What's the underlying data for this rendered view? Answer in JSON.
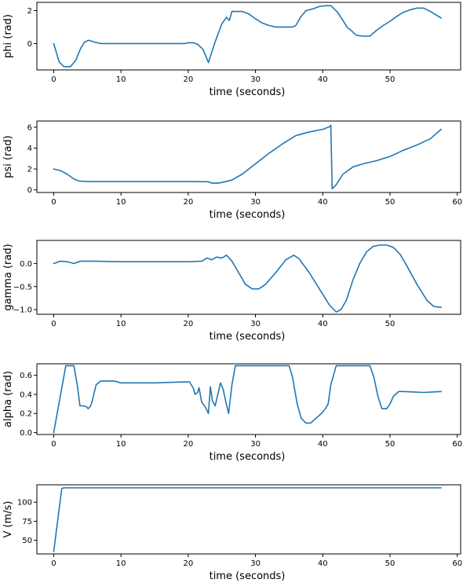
{
  "colors": {
    "series": "#1f77b4",
    "axes": "#000000",
    "background": "#ffffff"
  },
  "chart_data": [
    {
      "type": "line",
      "xlabel": "time (seconds)",
      "ylabel": "phi (rad)",
      "xlim": [
        -2.5,
        60.5
      ],
      "ylim": [
        -1.6,
        2.5
      ],
      "xticks": [
        0,
        10,
        20,
        30,
        40,
        50
      ],
      "xtick_labels": [
        "0",
        "10",
        "20",
        "30",
        "40",
        "50"
      ],
      "yticks": [
        -2,
        0,
        2
      ],
      "ytick_labels": [
        "",
        "0",
        "2"
      ],
      "grid": false,
      "series": [
        {
          "x": [
            0,
            0.8,
            1.5,
            2.5,
            3.3,
            4.0,
            4.6,
            5.2,
            6.0,
            7.0,
            10,
            15,
            19.5,
            20.0,
            20.8,
            21.4,
            22.2,
            23.0,
            24.0,
            25.0,
            25.7,
            26.1,
            26.5,
            27.2,
            28.0,
            29.0,
            30.0,
            31.0,
            32.0,
            33.0,
            34.5,
            35.5,
            36.0,
            36.7,
            37.5,
            38.5,
            39.5,
            40.5,
            41.2,
            42.2,
            43.0,
            43.6,
            44.2,
            45.0,
            46.0,
            47.0,
            48.0,
            49.0,
            50.0,
            51.0,
            52.0,
            53.0,
            54.0,
            55.0,
            56.0,
            57.0,
            57.6
          ],
          "y": [
            0.0,
            -1.1,
            -1.4,
            -1.4,
            -1.0,
            -0.3,
            0.1,
            0.2,
            0.1,
            0.0,
            0.0,
            0.0,
            0.0,
            0.05,
            0.05,
            -0.05,
            -0.35,
            -1.15,
            0.1,
            1.2,
            1.6,
            1.4,
            1.95,
            1.95,
            1.95,
            1.8,
            1.5,
            1.25,
            1.1,
            1.0,
            1.0,
            1.0,
            1.1,
            1.6,
            2.0,
            2.1,
            2.25,
            2.3,
            2.3,
            1.9,
            1.4,
            1.0,
            0.8,
            0.5,
            0.45,
            0.45,
            0.8,
            1.1,
            1.35,
            1.65,
            1.9,
            2.05,
            2.15,
            2.15,
            1.95,
            1.7,
            1.55
          ]
        }
      ]
    },
    {
      "type": "line",
      "xlabel": "time (seconds)",
      "ylabel": "psi (rad)",
      "xlim": [
        -2.5,
        60.5
      ],
      "ylim": [
        -0.25,
        6.6
      ],
      "xticks": [
        0,
        10,
        20,
        30,
        40,
        50,
        60
      ],
      "xtick_labels": [
        "0",
        "10",
        "20",
        "30",
        "40",
        "50",
        "60"
      ],
      "yticks": [
        0,
        2,
        4,
        6
      ],
      "ytick_labels": [
        "0",
        "2",
        "4",
        "6"
      ],
      "grid": false,
      "series": [
        {
          "x": [
            0,
            1,
            2,
            3,
            3.8,
            5,
            10,
            15,
            20,
            23.0,
            23.5,
            24.5,
            25.5,
            26.5,
            28,
            30,
            32,
            34,
            36,
            38,
            40,
            41.0,
            41.2,
            41.4,
            42.0,
            43.0,
            44.5,
            46,
            48,
            50,
            52,
            54,
            56,
            57.6
          ],
          "y": [
            2.0,
            1.85,
            1.5,
            1.05,
            0.85,
            0.8,
            0.8,
            0.8,
            0.8,
            0.78,
            0.65,
            0.65,
            0.78,
            0.95,
            1.5,
            2.5,
            3.5,
            4.4,
            5.2,
            5.55,
            5.8,
            6.05,
            6.2,
            0.1,
            0.5,
            1.5,
            2.2,
            2.5,
            2.8,
            3.2,
            3.8,
            4.3,
            4.9,
            5.8
          ]
        }
      ]
    },
    {
      "type": "line",
      "xlabel": "time (seconds)",
      "ylabel": "gamma (rad)",
      "xlim": [
        -2.5,
        60.5
      ],
      "ylim": [
        -1.1,
        0.5
      ],
      "xticks": [
        0,
        10,
        20,
        30,
        40,
        50
      ],
      "xtick_labels": [
        "0",
        "10",
        "20",
        "30",
        "40",
        "50"
      ],
      "yticks": [
        0.0,
        -0.5,
        -1.0
      ],
      "ytick_labels": [
        "0.0",
        "−0.5",
        "−1.0"
      ],
      "grid": false,
      "series": [
        {
          "x": [
            0,
            1,
            2,
            3,
            4,
            6,
            10,
            15,
            20,
            22.0,
            22.8,
            23.5,
            24.2,
            25.0,
            25.7,
            26.5,
            27.5,
            28.5,
            29.5,
            30.5,
            31.5,
            33,
            34.5,
            35.7,
            36.5,
            38,
            39.5,
            41,
            42,
            42.7,
            43.5,
            44.5,
            45.5,
            46.5,
            47.5,
            48.5,
            49.5,
            50.5,
            51.5,
            52.5,
            54,
            55.5,
            56.5,
            57.6
          ],
          "y": [
            0.0,
            0.05,
            0.04,
            0.0,
            0.05,
            0.05,
            0.04,
            0.04,
            0.04,
            0.05,
            0.12,
            0.08,
            0.14,
            0.12,
            0.18,
            0.05,
            -0.2,
            -0.45,
            -0.55,
            -0.55,
            -0.45,
            -0.2,
            0.08,
            0.18,
            0.1,
            -0.2,
            -0.55,
            -0.9,
            -1.05,
            -1.0,
            -0.8,
            -0.35,
            0.0,
            0.25,
            0.37,
            0.4,
            0.4,
            0.35,
            0.2,
            -0.05,
            -0.45,
            -0.8,
            -0.93,
            -0.95
          ]
        }
      ]
    },
    {
      "type": "line",
      "xlabel": "time (seconds)",
      "ylabel": "alpha (rad)",
      "xlim": [
        -2.5,
        60.5
      ],
      "ylim": [
        -0.02,
        0.72
      ],
      "xticks": [
        0,
        10,
        20,
        30,
        40,
        50,
        60
      ],
      "xtick_labels": [
        "0",
        "10",
        "20",
        "30",
        "40",
        "50",
        "60"
      ],
      "yticks": [
        0.0,
        0.2,
        0.4,
        0.6
      ],
      "ytick_labels": [
        "0.0",
        "0.2",
        "0.4",
        "0.6"
      ],
      "grid": false,
      "series": [
        {
          "x": [
            0,
            1.8,
            2.4,
            3.0,
            3.5,
            3.9,
            4.4,
            4.9,
            5.1,
            5.4,
            5.6,
            5.9,
            6.3,
            7.0,
            9,
            10,
            11,
            15,
            19.5,
            20.2,
            20.8,
            21.0,
            21.4,
            21.6,
            22.0,
            22.6,
            23.0,
            23.3,
            23.6,
            24.0,
            24.4,
            24.8,
            25.2,
            25.6,
            26.0,
            26.5,
            27.0,
            28,
            32,
            35.0,
            35.5,
            36.2,
            36.8,
            37.5,
            38.2,
            39.0,
            39.8,
            40.4,
            40.8,
            41.2,
            41.6,
            42.0,
            46.5,
            47.0,
            47.6,
            48.2,
            48.8,
            49.5,
            50.0,
            50.5,
            51.3,
            52,
            55,
            57.6
          ],
          "y": [
            0.0,
            0.7,
            0.7,
            0.7,
            0.5,
            0.28,
            0.28,
            0.27,
            0.25,
            0.27,
            0.3,
            0.38,
            0.5,
            0.54,
            0.54,
            0.52,
            0.52,
            0.52,
            0.53,
            0.53,
            0.46,
            0.4,
            0.42,
            0.47,
            0.32,
            0.26,
            0.2,
            0.48,
            0.33,
            0.28,
            0.4,
            0.52,
            0.45,
            0.32,
            0.2,
            0.5,
            0.7,
            0.7,
            0.7,
            0.7,
            0.58,
            0.3,
            0.15,
            0.1,
            0.1,
            0.15,
            0.2,
            0.25,
            0.3,
            0.5,
            0.6,
            0.7,
            0.7,
            0.7,
            0.58,
            0.38,
            0.25,
            0.25,
            0.3,
            0.38,
            0.43,
            0.43,
            0.42,
            0.43
          ]
        }
      ]
    },
    {
      "type": "line",
      "xlabel": "time (seconds)",
      "ylabel": "V (m/s)",
      "xlim": [
        -2.5,
        60.5
      ],
      "ylim": [
        32,
        123
      ],
      "xticks": [
        0,
        10,
        20,
        30,
        40,
        50,
        60
      ],
      "xtick_labels": [
        "0",
        "10",
        "20",
        "30",
        "40",
        "50",
        "60"
      ],
      "yticks": [
        50,
        75,
        100
      ],
      "ytick_labels": [
        "50",
        "75",
        "100"
      ],
      "grid": false,
      "series": [
        {
          "x": [
            0,
            1.2,
            1.5,
            10,
            20,
            30,
            40,
            50,
            57.6
          ],
          "y": [
            35,
            118,
            119,
            119,
            119,
            119,
            119,
            119,
            119
          ]
        }
      ]
    }
  ]
}
